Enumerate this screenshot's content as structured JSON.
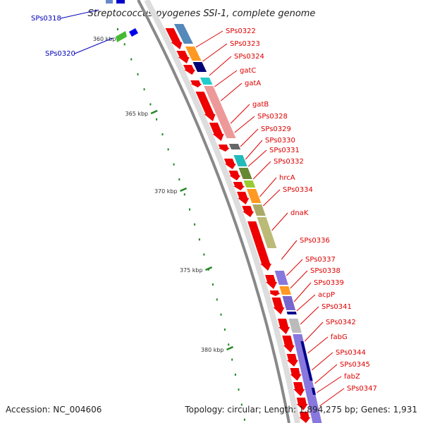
{
  "title": "Streptococcus pyogenes SSI-1, complete genome",
  "footer": {
    "accession": "Accession: NC_004606",
    "topology": "Topology: circular; Length: 1,894,275 bp; Genes: 1,931"
  },
  "colors": {
    "forward_gene_label": "#dd0000",
    "reverse_gene_label": "#0000bb",
    "cds_arrow": "#ee0000",
    "backbone": "#888888",
    "tick": "#228822"
  },
  "kbp_ticks": [
    "360 kbp",
    "365 kbp",
    "370 kbp",
    "375 kbp",
    "380 kbp"
  ],
  "reverse_genes": [
    "SPs0318",
    "SPs0320"
  ],
  "forward_genes": [
    "SPs0322",
    "SPs0323",
    "SPs0324",
    "gatC",
    "gatA",
    "gatB",
    "SPs0328",
    "SPs0329",
    "SPs0330",
    "SPs0331",
    "SPs0332",
    "hrcA",
    "SPs0334",
    "dnaK",
    "SPs0336",
    "SPs0337",
    "SPs0338",
    "SPs0339",
    "acpP",
    "SPs0341",
    "SPs0342",
    "fabG",
    "SPs0344",
    "SPs0345",
    "fabZ",
    "SPs0347"
  ]
}
